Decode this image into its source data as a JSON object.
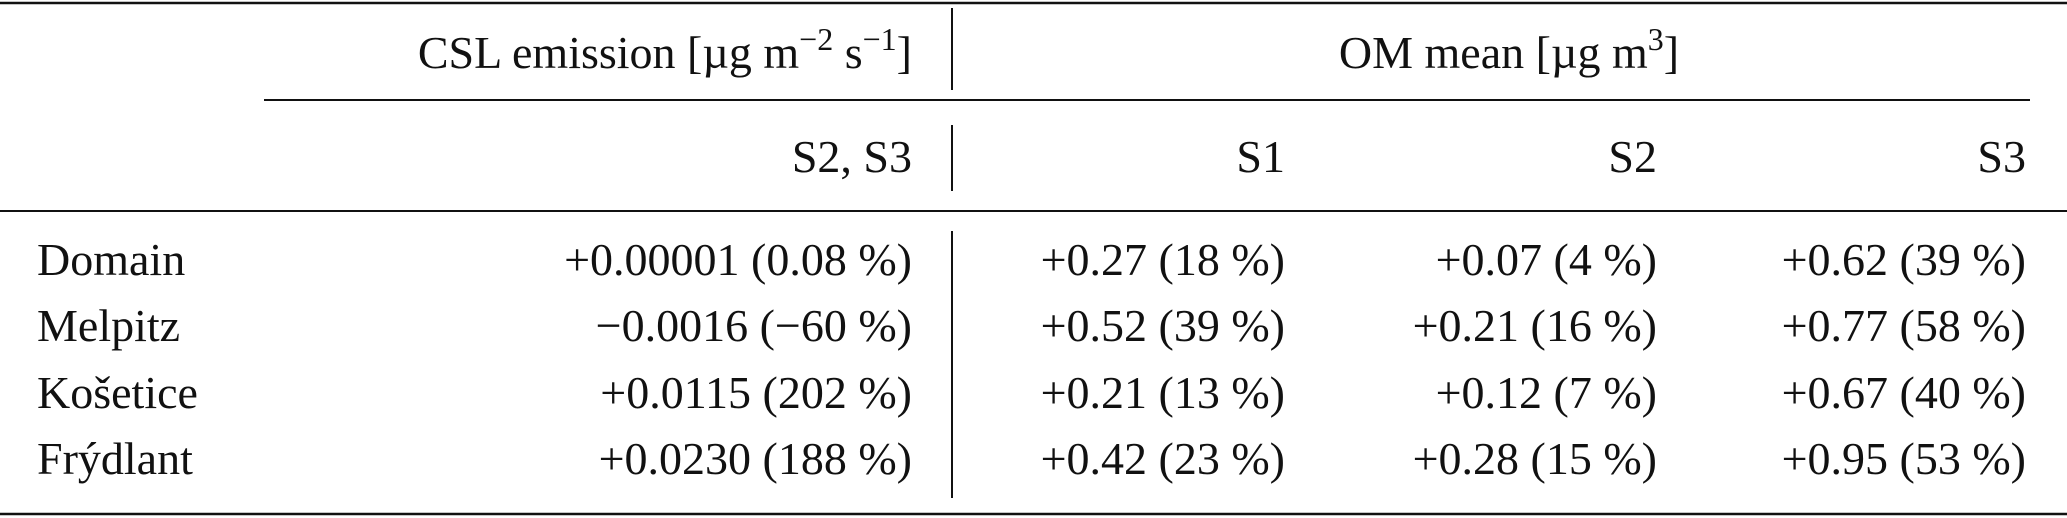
{
  "header": {
    "groups": [
      [
        "CSL emission [µg m",
        "−2",
        " s",
        "−1",
        "]"
      ],
      [
        "OM mean [µg m",
        "3",
        "]"
      ]
    ],
    "columns": [
      "S2, S3",
      "S1",
      "S2",
      "S3"
    ]
  },
  "table": {
    "rows": [
      [
        "Domain",
        "+0.00001 (0.08 %)",
        "+0.27 (18 %)",
        "+0.07 (4 %)",
        "+0.62 (39 %)"
      ],
      [
        "Melpitz",
        "−0.0016 (−60 %)",
        "+0.52 (39 %)",
        "+0.21 (16 %)",
        "+0.77 (58 %)"
      ],
      [
        "Košetice",
        "+0.0115 (202 %)",
        "+0.21 (13 %)",
        "+0.12 (7 %)",
        "+0.67 (40 %)"
      ],
      [
        "Frýdlant",
        "+0.0230 (188 %)",
        "+0.42 (23 %)",
        "+0.28 (15 %)",
        "+0.95 (53 %)"
      ]
    ]
  }
}
